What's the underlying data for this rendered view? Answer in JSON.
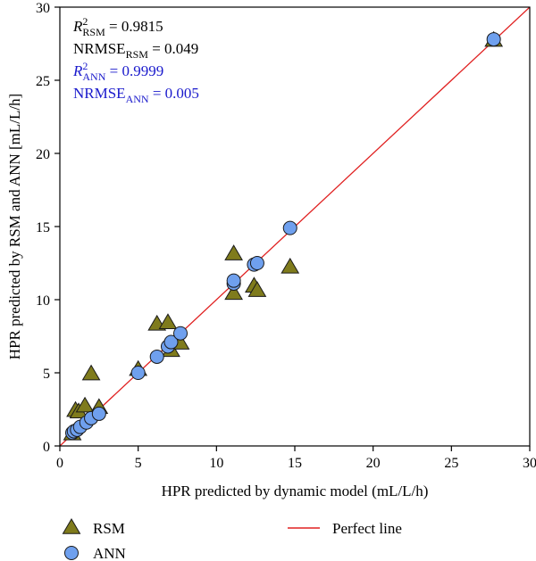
{
  "chart_data": {
    "type": "scatter",
    "xlabel": "HPR predicted by dynamic model (mL/L/h)",
    "ylabel": "HPR predicted by RSM and ANN [mL/L/h]",
    "xlim": [
      0,
      30
    ],
    "ylim": [
      0,
      30
    ],
    "xticks": [
      0,
      5,
      10,
      15,
      20,
      25,
      30
    ],
    "yticks": [
      0,
      5,
      10,
      15,
      20,
      25,
      30
    ],
    "grid": false,
    "legend_position": "bottom",
    "annotations": [
      {
        "base": "R",
        "sup": "2",
        "sub": "RSM",
        "rest": " = 0.9815",
        "color": "#000000"
      },
      {
        "base": "NRMSE",
        "sup": "",
        "sub": "RSM",
        "rest": " = 0.049",
        "color": "#000000"
      },
      {
        "base": "R",
        "sup": "2",
        "sub": "ANN",
        "rest": " = 0.9999",
        "color": "#1a1acc"
      },
      {
        "base": "NRMSE",
        "sup": "",
        "sub": "ANN",
        "rest": " = 0.005",
        "color": "#1a1acc"
      }
    ],
    "series": [
      {
        "name": "RSM",
        "marker": "triangle",
        "color": "#7f7b1c",
        "points": [
          [
            0.8,
            0.8
          ],
          [
            1.0,
            2.4
          ],
          [
            1.2,
            2.3
          ],
          [
            1.6,
            2.7
          ],
          [
            2.0,
            4.9
          ],
          [
            2.5,
            2.6
          ],
          [
            5.0,
            5.2
          ],
          [
            6.2,
            8.3
          ],
          [
            6.9,
            8.4
          ],
          [
            7.1,
            6.5
          ],
          [
            7.7,
            7.0
          ],
          [
            11.1,
            10.4
          ],
          [
            11.1,
            13.1
          ],
          [
            12.4,
            10.9
          ],
          [
            12.6,
            10.6
          ],
          [
            14.7,
            12.2
          ],
          [
            27.7,
            27.7
          ]
        ]
      },
      {
        "name": "ANN",
        "marker": "circle",
        "color": "#6fa0ee",
        "points": [
          [
            0.8,
            0.9
          ],
          [
            0.9,
            1.0
          ],
          [
            1.1,
            1.1
          ],
          [
            1.3,
            1.3
          ],
          [
            1.7,
            1.6
          ],
          [
            2.0,
            1.9
          ],
          [
            2.5,
            2.2
          ],
          [
            5.0,
            5.0
          ],
          [
            6.2,
            6.1
          ],
          [
            6.9,
            6.8
          ],
          [
            7.1,
            7.1
          ],
          [
            7.7,
            7.7
          ],
          [
            11.1,
            11.1
          ],
          [
            11.1,
            11.3
          ],
          [
            12.4,
            12.4
          ],
          [
            12.6,
            12.5
          ],
          [
            14.7,
            14.9
          ],
          [
            27.7,
            27.8
          ]
        ]
      }
    ],
    "reference_line": {
      "name": "Perfect line",
      "color": "#e02020",
      "from": [
        0,
        0
      ],
      "to": [
        30,
        30
      ]
    }
  }
}
